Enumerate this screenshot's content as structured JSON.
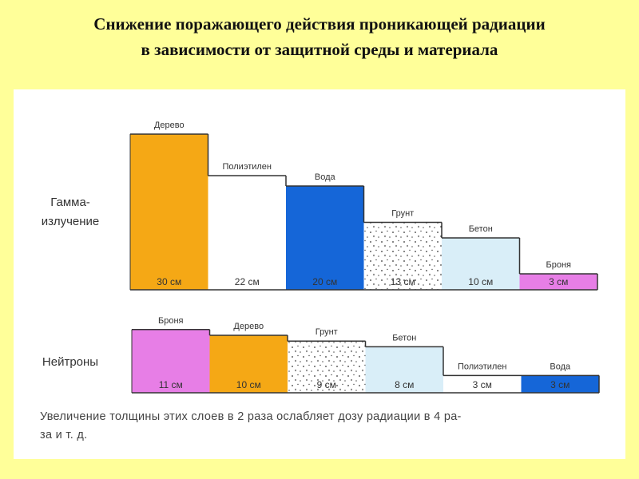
{
  "title_line1": "Снижение поражающего действия проникающей радиации",
  "title_line2": "в зависимости от защитной среды и материала",
  "chart_data": [
    {
      "type": "bar",
      "row_label": [
        "Гамма-",
        "излучение"
      ],
      "unit": "см",
      "categories": [
        "Дерево",
        "Полиэтилен",
        "Вода",
        "Грунт",
        "Бетон",
        "Броня"
      ],
      "values": [
        30,
        22,
        20,
        13,
        10,
        3
      ],
      "colors": [
        "#F5A815",
        "#FFFFFF",
        "#1566D8",
        "pattern-dots",
        "#D9EEF8",
        "#E77EE6"
      ]
    },
    {
      "type": "bar",
      "row_label": [
        "Нейтроны"
      ],
      "unit": "см",
      "categories": [
        "Броня",
        "Дерево",
        "Грунт",
        "Бетон",
        "Полиэтилен",
        "Вода"
      ],
      "values": [
        11,
        10,
        9,
        8,
        3,
        3
      ],
      "colors": [
        "#E77EE6",
        "#F5A815",
        "pattern-dots",
        "#D9EEF8",
        "#FFFFFF",
        "#1566D8"
      ]
    }
  ],
  "note_line1": "Увеличение толщины этих слоев в 2 раза  ослабляет дозу  радиации  в  4  ра-",
  "note_line2": "за и т. д."
}
